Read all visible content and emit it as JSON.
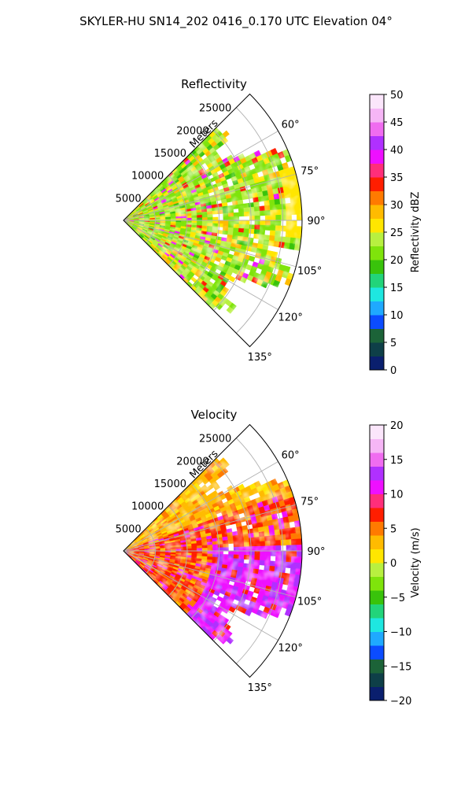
{
  "figure": {
    "title": "SKYLER-HU  SN14_202  0416_0.170 UTC Elevation 04°"
  },
  "chart_data": [
    {
      "type": "heatmap",
      "projection": "polar-sector",
      "title": "Reflectivity",
      "range_label": "Meters",
      "range_ticks": [
        5000,
        10000,
        15000,
        20000,
        25000
      ],
      "range_tick_labels": [
        "5000",
        "10000",
        "15000",
        "20000",
        "25000"
      ],
      "azimuth_ticks": [
        60,
        75,
        90,
        105,
        120,
        135
      ],
      "azimuth_tick_labels": [
        "60°",
        "75°",
        "90°",
        "105°",
        "120°",
        "135°"
      ],
      "azimuth_range": [
        45,
        135
      ],
      "range_max": 28000,
      "grid": true,
      "colorbar": {
        "label": "Reflectivity dBZ",
        "range": [
          0,
          50
        ],
        "ticks": [
          0,
          5,
          10,
          15,
          20,
          25,
          30,
          35,
          40,
          45,
          50
        ],
        "tick_labels": [
          "0",
          "5",
          "10",
          "15",
          "20",
          "25",
          "30",
          "35",
          "40",
          "45",
          "50"
        ]
      }
    },
    {
      "type": "heatmap",
      "projection": "polar-sector",
      "title": "Velocity",
      "range_label": "Meters",
      "range_ticks": [
        5000,
        10000,
        15000,
        20000,
        25000
      ],
      "range_tick_labels": [
        "5000",
        "10000",
        "15000",
        "20000",
        "25000"
      ],
      "azimuth_ticks": [
        60,
        75,
        90,
        105,
        120,
        135
      ],
      "azimuth_tick_labels": [
        "60°",
        "75°",
        "90°",
        "105°",
        "120°",
        "135°"
      ],
      "azimuth_range": [
        45,
        135
      ],
      "range_max": 28000,
      "grid": true,
      "colorbar": {
        "label": "Velocity (m/s)",
        "range": [
          -20,
          20
        ],
        "ticks": [
          -20,
          -15,
          -10,
          -5,
          0,
          5,
          10,
          15,
          20
        ],
        "tick_labels": [
          "−20",
          "−15",
          "−10",
          "−5",
          "0",
          "5",
          "10",
          "15",
          "20"
        ]
      }
    }
  ],
  "colors": {
    "grid": "#b0b0b0",
    "reflectivity_scale": [
      "#0a1f6e",
      "#0e3f48",
      "#1c6338",
      "#0b4cff",
      "#1fa9ff",
      "#1ee7e0",
      "#22d47a",
      "#39c30b",
      "#7fe40b",
      "#b8f040",
      "#ffe600",
      "#ffbb00",
      "#ff7a00",
      "#ff1e00",
      "#ff2e7a",
      "#ee10ff",
      "#b030ff",
      "#f06cf0",
      "#f6b6f6",
      "#fbe6fb"
    ],
    "velocity_scale": [
      "#0a1f6e",
      "#0e3f48",
      "#1c6338",
      "#0b4cff",
      "#1fa9ff",
      "#1ee7e0",
      "#22d47a",
      "#39c30b",
      "#7fe40b",
      "#b8f040",
      "#ffe600",
      "#ffbb00",
      "#ff7a00",
      "#ff1e00",
      "#ff2e7a",
      "#ee10ff",
      "#b030ff",
      "#f06cf0",
      "#f6b6f6",
      "#fbe6fb"
    ]
  }
}
